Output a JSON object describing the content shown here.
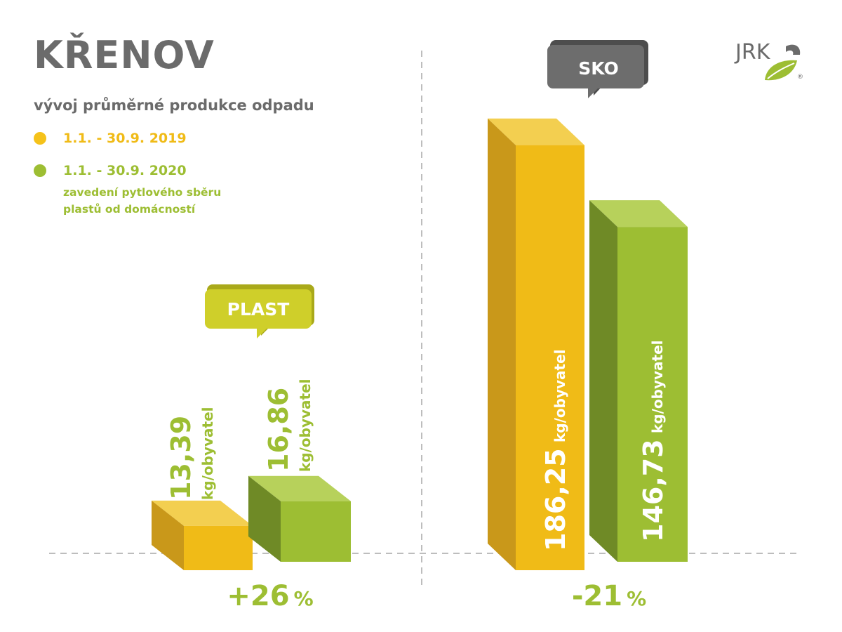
{
  "header": {
    "title": "KŘENOV",
    "subtitle": "vývoj průměrné produkce odpadu"
  },
  "legend": [
    {
      "label": "1.1. -  30.9. 2019",
      "color": "#f5c21a"
    },
    {
      "label": "1.1. -  30.9. 2020",
      "color": "#9dbe33",
      "note_lines": [
        "zavedení pytlového sběru",
        "plastů od domácností"
      ]
    }
  ],
  "logo": {
    "text": "JRK",
    "registered": "®"
  },
  "colors": {
    "yellow": "#f0bb17",
    "green": "#9dbe33",
    "grey_text": "#6b6b6b",
    "sko_badge": "#6d6d6d",
    "plast_badge": "#cfcf2a"
  },
  "chart_data": [
    {
      "type": "bar",
      "badge": "PLAST",
      "categories": [
        "1.1. -  30.9. 2019",
        "1.1. -  30.9. 2020"
      ],
      "values": [
        13.39,
        16.86
      ],
      "value_labels": [
        "13,39",
        "16,86"
      ],
      "unit": "kg/obyvatel",
      "change": "+26 %",
      "change_value": "+26",
      "change_unit": "%"
    },
    {
      "type": "bar",
      "badge": "SKO",
      "categories": [
        "1.1. -  30.9. 2019",
        "1.1. -  30.9. 2020"
      ],
      "values": [
        186.25,
        146.73
      ],
      "value_labels": [
        "186,25",
        "146,73"
      ],
      "unit": "kg/obyvatel",
      "change": "-21 %",
      "change_value": "-21",
      "change_unit": "%"
    }
  ]
}
